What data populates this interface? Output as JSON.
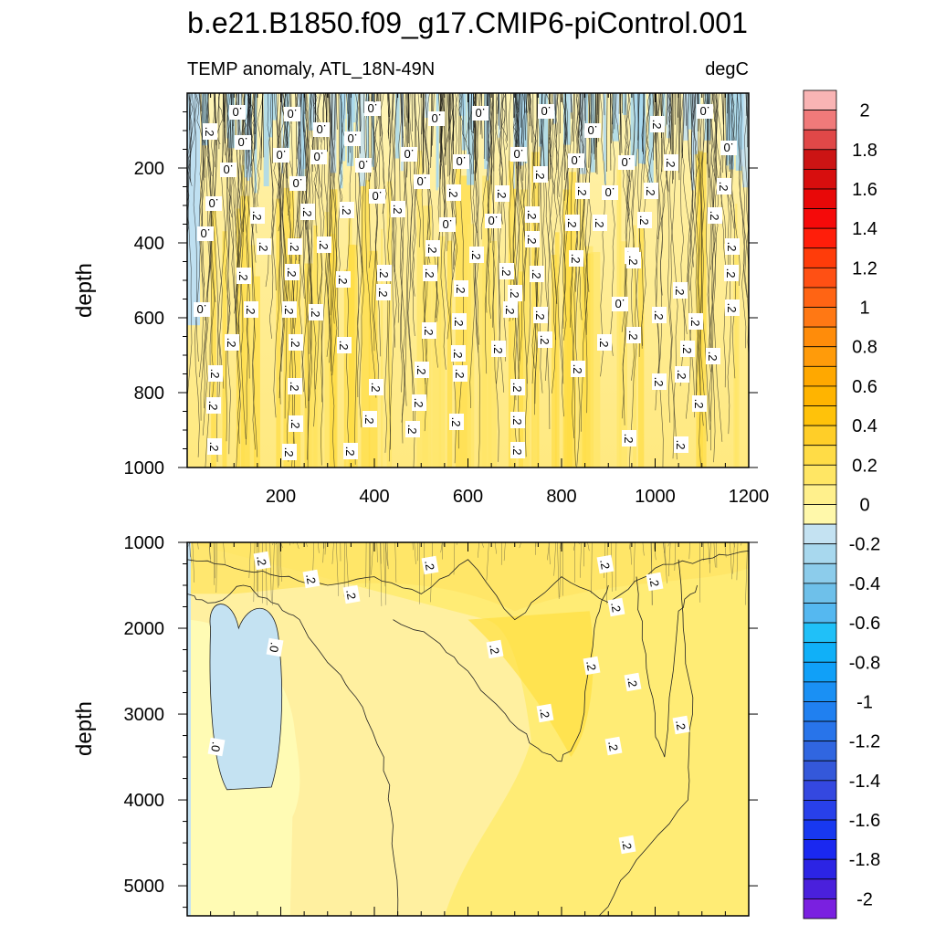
{
  "figure": {
    "title": "b.e21.B1850.f09_g17.CMIP6-piControl.001",
    "subtitle_left": "TEMP anomaly, ATL_18N-49N",
    "subtitle_right": "degC"
  },
  "chart_data": [
    {
      "type": "heatmap",
      "panel": "upper",
      "variable": "TEMP anomaly",
      "region": "ATL_18N-49N",
      "units": "degC",
      "ylabel": "depth",
      "xlabel": "",
      "xlim": [
        0,
        1200
      ],
      "ylim": [
        1000,
        0
      ],
      "y_reversed": true,
      "x_ticks": [
        200,
        400,
        600,
        800,
        1000,
        1200
      ],
      "y_ticks": [
        200,
        400,
        600,
        800,
        1000
      ],
      "field_description_values": {
        "near_surface_band_depth": [
          0,
          120
        ],
        "dominant_anomaly_range": [
          0.0,
          0.4
        ],
        "near_surface_anomaly_range": [
          -0.2,
          0.0
        ]
      },
      "contour_labels": [
        ".0",
        ".2"
      ]
    },
    {
      "type": "heatmap",
      "panel": "lower",
      "variable": "TEMP anomaly",
      "region": "ATL_18N-49N",
      "units": "degC",
      "ylabel": "depth",
      "xlabel": "",
      "xlim": [
        0,
        1200
      ],
      "ylim": [
        5350,
        1000
      ],
      "y_reversed": true,
      "y_ticks": [
        1000,
        2000,
        3000,
        4000,
        5000
      ],
      "cold_blob": {
        "x_range": [
          45,
          200
        ],
        "depth_range": [
          1700,
          3880
        ],
        "value": -0.1
      },
      "contour_labels": [
        ".0",
        ".2"
      ]
    }
  ],
  "colorbar": {
    "labels": [
      "2",
      "1.8",
      "1.6",
      "1.4",
      "1.2",
      "1",
      "0.8",
      "0.6",
      "0.4",
      "0.2",
      "0",
      "-0.2",
      "-0.4",
      "-0.6",
      "-0.8",
      "-1",
      "-1.2",
      "-1.4",
      "-1.6",
      "-1.8",
      "-2"
    ],
    "colors": [
      "#F9B4B4",
      "#F07A7A",
      "#E04848",
      "#CC1414",
      "#D70E0E",
      "#E80808",
      "#F50A0A",
      "#FF1E0A",
      "#FF3C0A",
      "#FF5014",
      "#FF6414",
      "#FF7814",
      "#FF8C0A",
      "#FF9B0A",
      "#FFA800",
      "#FFB400",
      "#FFC20A",
      "#FFCE28",
      "#FFDC46",
      "#FFE664",
      "#FFF08C",
      "#FFF8AA",
      "#C4E2F2",
      "#A8D8EE",
      "#8CCCEB",
      "#6EC0EA",
      "#55B8F0",
      "#20C0F8",
      "#10B0F8",
      "#10A0F8",
      "#1A90F4",
      "#2080F0",
      "#2874EA",
      "#3066E0",
      "#3458DA",
      "#3448E0",
      "#2840EA",
      "#1838F0",
      "#1A28F0",
      "#2C24E4",
      "#4A20DC",
      "#7A20E0"
    ]
  }
}
